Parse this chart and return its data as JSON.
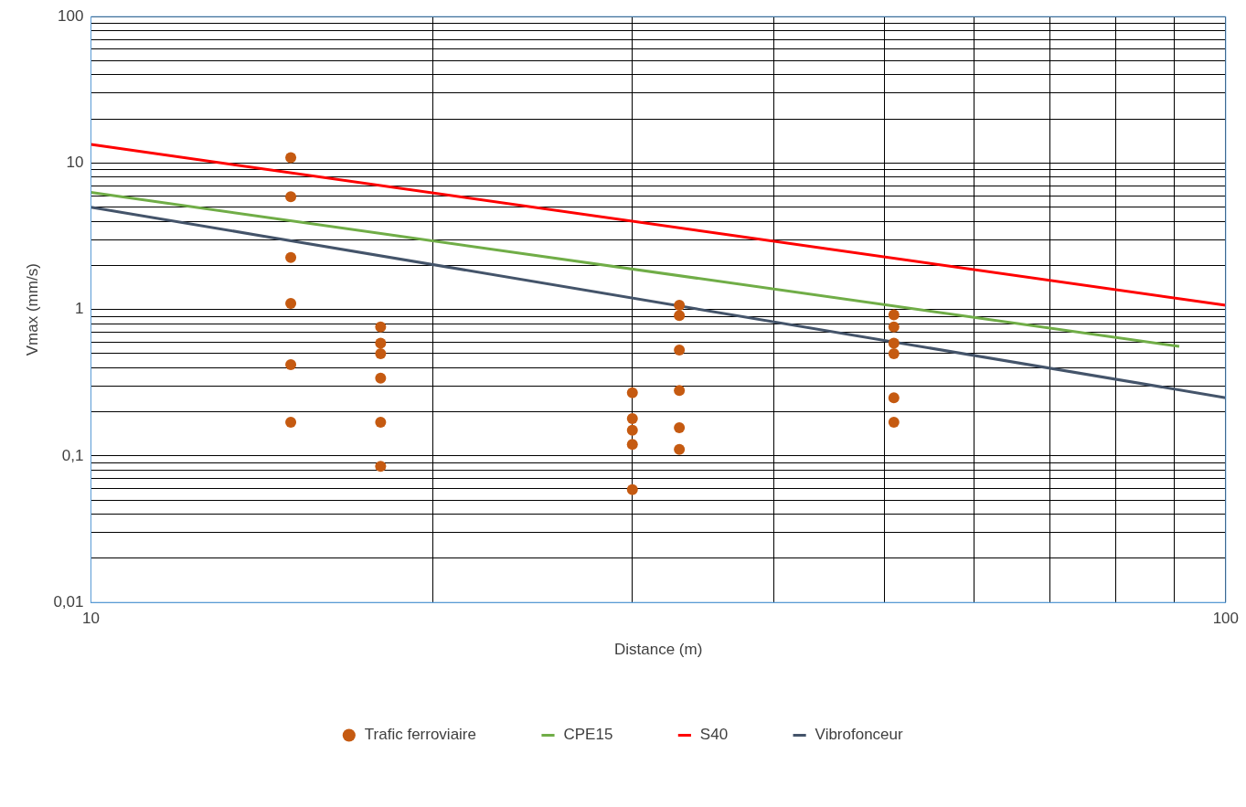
{
  "chart_data": {
    "type": "scatter",
    "xlabel": "Distance (m)",
    "ylabel": "Vmax (mm/s)",
    "log": "xy",
    "grid": true,
    "legend": "bottom",
    "xlim": [
      10,
      100
    ],
    "ylim": [
      0.01,
      100
    ],
    "xticks": [
      10,
      {
        "value": 20,
        "label": null
      },
      {
        "value": 30,
        "label": null
      },
      {
        "value": 40,
        "label": null
      },
      {
        "value": 50,
        "label": null
      },
      {
        "value": 60,
        "label": null
      },
      {
        "value": 70,
        "label": null
      },
      {
        "value": 80,
        "label": null
      },
      {
        "value": 90,
        "label": null
      },
      100
    ],
    "yticks": [
      {
        "value": 0.01,
        "label": "0,01"
      },
      {
        "value": 0.02,
        "label": null
      },
      {
        "value": 0.03,
        "label": null
      },
      {
        "value": 0.04,
        "label": null
      },
      {
        "value": 0.05,
        "label": null
      },
      {
        "value": 0.06,
        "label": null
      },
      {
        "value": 0.07,
        "label": null
      },
      {
        "value": 0.08,
        "label": null
      },
      {
        "value": 0.09,
        "label": null
      },
      {
        "value": 0.1,
        "label": "0,1"
      },
      {
        "value": 0.2,
        "label": null
      },
      {
        "value": 0.3,
        "label": null
      },
      {
        "value": 0.4,
        "label": null
      },
      {
        "value": 0.5,
        "label": null
      },
      {
        "value": 0.6,
        "label": null
      },
      {
        "value": 0.7,
        "label": null
      },
      {
        "value": 0.8,
        "label": null
      },
      {
        "value": 0.9,
        "label": null
      },
      1,
      {
        "value": 2,
        "label": null
      },
      {
        "value": 3,
        "label": null
      },
      {
        "value": 4,
        "label": null
      },
      {
        "value": 5,
        "label": null
      },
      {
        "value": 6,
        "label": null
      },
      {
        "value": 7,
        "label": null
      },
      {
        "value": 8,
        "label": null
      },
      {
        "value": 9,
        "label": null
      },
      10,
      {
        "value": 20,
        "label": null
      },
      {
        "value": 30,
        "label": null
      },
      {
        "value": 40,
        "label": null
      },
      {
        "value": 50,
        "label": null
      },
      {
        "value": 60,
        "label": null
      },
      {
        "value": 70,
        "label": null
      },
      {
        "value": 80,
        "label": null
      },
      {
        "value": 90,
        "label": null
      },
      100
    ],
    "series": [
      {
        "name": "Trafic ferroviaire",
        "type": "scatter",
        "marker": "circle",
        "color": "#c55a11",
        "x": [
          15,
          15,
          15,
          15,
          15,
          15,
          18,
          18,
          18,
          18,
          18,
          18,
          30,
          30,
          30,
          30,
          30,
          33,
          33,
          33,
          33,
          33,
          33,
          51,
          51,
          51,
          51,
          51,
          51
        ],
        "values": [
          10.9,
          5.9,
          2.27,
          1.1,
          0.42,
          0.17,
          0.76,
          0.59,
          0.5,
          0.34,
          0.17,
          0.085,
          0.27,
          0.18,
          0.15,
          0.12,
          0.059,
          1.07,
          0.91,
          0.53,
          0.28,
          0.156,
          0.111,
          0.92,
          0.76,
          0.59,
          0.5,
          0.25,
          0.17
        ]
      },
      {
        "name": "CPE15",
        "type": "line",
        "marker": "none",
        "color": "#70ad47",
        "x": [
          10,
          91
        ],
        "values": [
          6.3,
          0.56
        ]
      },
      {
        "name": "S40",
        "type": "line",
        "marker": "none",
        "color": "#ff0000",
        "x": [
          10,
          100
        ],
        "values": [
          13.4,
          1.07
        ]
      },
      {
        "name": "Vibrofonceur",
        "type": "line",
        "marker": "none",
        "color": "#44546a",
        "x": [
          10,
          100
        ],
        "values": [
          5.0,
          0.25
        ]
      }
    ]
  }
}
